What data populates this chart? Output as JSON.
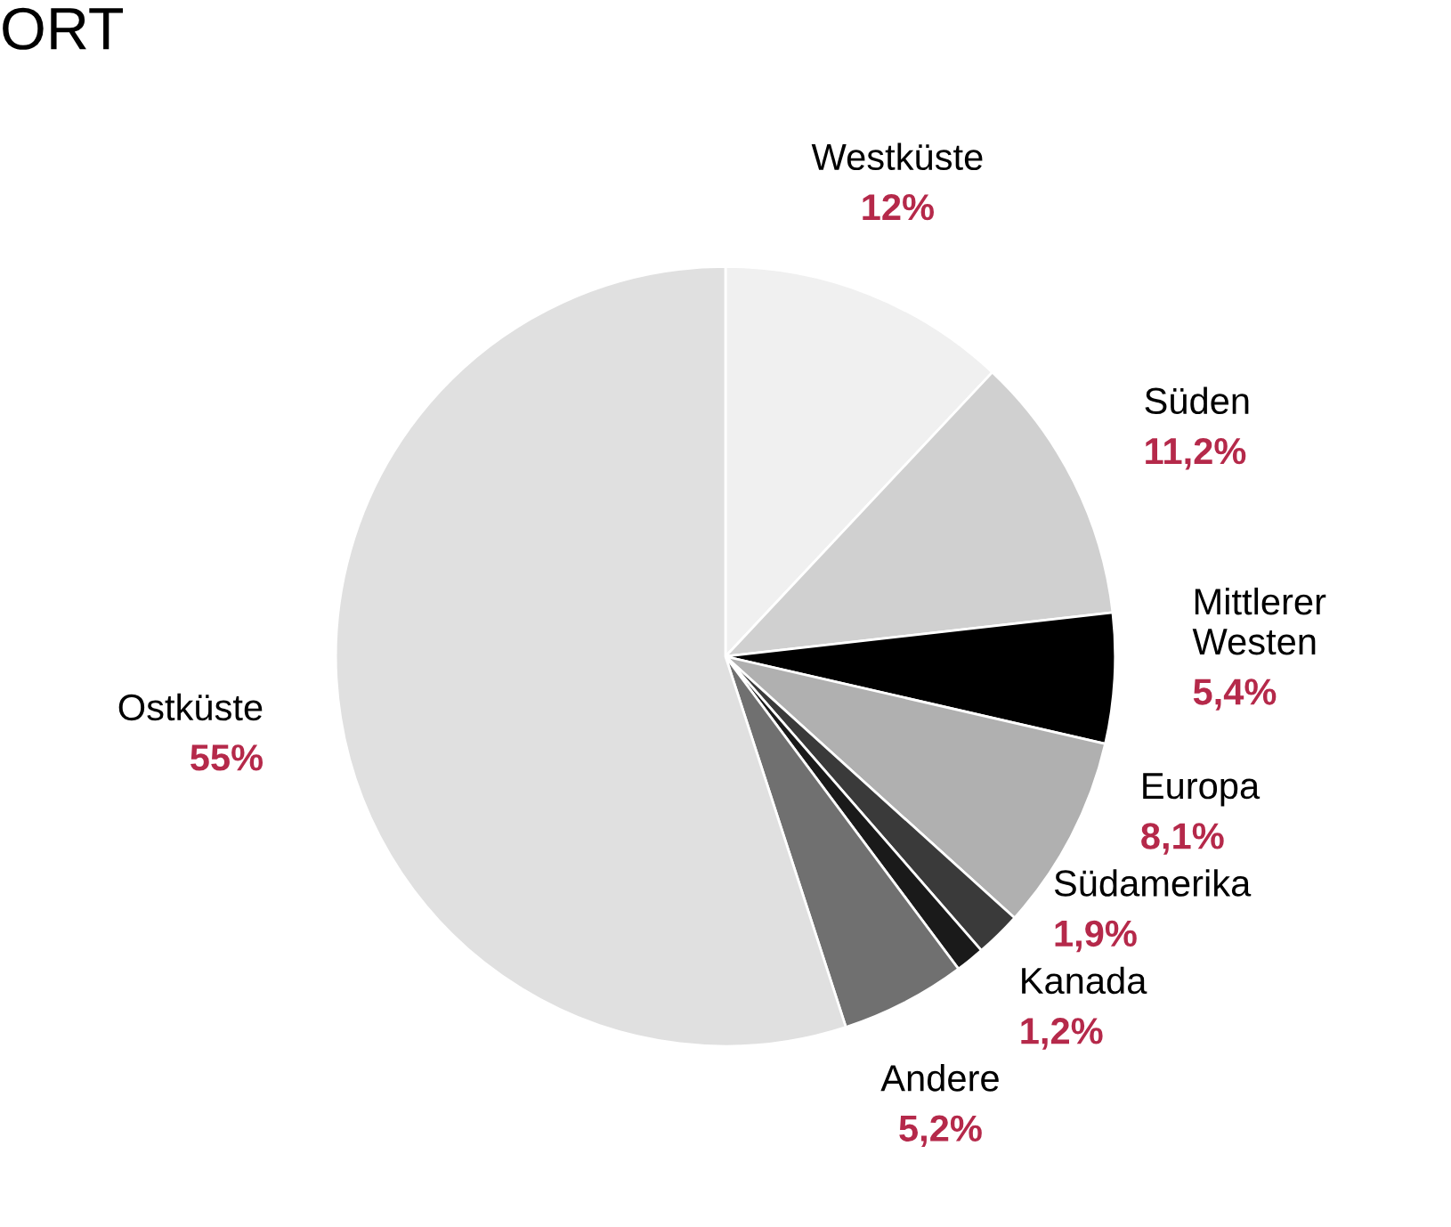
{
  "chart_data": {
    "type": "pie",
    "title": "ORT",
    "categories": [
      "Westküste",
      "Süden",
      "Mittlerer\nWesten",
      "Europa",
      "Südamerika",
      "Kanada",
      "Andere",
      "Ostküste"
    ],
    "values": [
      12,
      11.2,
      5.4,
      8.1,
      1.9,
      1.2,
      5.2,
      55
    ],
    "value_labels": [
      "12%",
      "11,2%",
      "5,4%",
      "8,1%",
      "1,9%",
      "1,2%",
      "5,2%",
      "55%"
    ],
    "colors": [
      "#f0f0f0",
      "#d0d0d0",
      "#000000",
      "#b0b0b0",
      "#3a3a3a",
      "#1a1a1a",
      "#707070",
      "#e0e0e0"
    ],
    "legend": false
  }
}
